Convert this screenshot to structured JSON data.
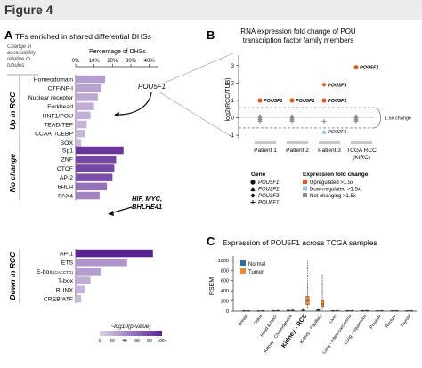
{
  "figure": {
    "title": "Figure 4"
  },
  "panelA": {
    "letter": "A",
    "title": "TFs enriched in shared differential DHSs",
    "side_note": [
      "Change in",
      "accessibility",
      "relative to",
      "tubules"
    ],
    "axis_title": "Percentage of DHSs",
    "ticks": [
      "0%",
      "10%",
      "20%",
      "30%",
      "40%"
    ],
    "xlim": [
      0,
      45
    ],
    "groups": [
      {
        "label": "Up in RCC",
        "rows": [
          {
            "name": "Homeodomain",
            "value": 16,
            "level": 0.3
          },
          {
            "name": "CTF/NF-I",
            "value": 14,
            "level": 0.28
          },
          {
            "name": "Nuclear receptor",
            "value": 12,
            "level": 0.25
          },
          {
            "name": "Forkhead",
            "value": 10,
            "level": 0.22
          },
          {
            "name": "HNF1/POU",
            "value": 8,
            "level": 0.2
          },
          {
            "name": "TEAD/TEF",
            "value": 6,
            "level": 0.18
          },
          {
            "name": "CCAAT/CEBP",
            "value": 5,
            "level": 0.16
          },
          {
            "name": "SOX",
            "value": 3,
            "level": 0.14
          }
        ]
      },
      {
        "label": "No change",
        "rows": [
          {
            "name": "Sp1",
            "value": 26,
            "level": 0.9
          },
          {
            "name": "ZNF",
            "value": 22,
            "level": 0.8
          },
          {
            "name": "CTCF",
            "value": 21,
            "level": 0.8
          },
          {
            "name": "AP-2",
            "value": 20,
            "level": 0.75
          },
          {
            "name": "bHLH",
            "value": 17,
            "level": 0.55
          },
          {
            "name": "PAX4",
            "value": 13,
            "level": 0.45
          }
        ]
      },
      {
        "label": "Down in RCC",
        "rows": [
          {
            "name": "AP-1",
            "value": 42,
            "level": 1.0
          },
          {
            "name": "ETS",
            "value": 28,
            "level": 0.35
          },
          {
            "name": "E-box",
            "sub": "(CACCTG)",
            "value": 14,
            "level": 0.3
          },
          {
            "name": "T-box",
            "value": 8,
            "level": 0.22
          },
          {
            "name": "RUNX",
            "value": 5,
            "level": 0.18
          },
          {
            "name": "CREB/ATF",
            "value": 3,
            "level": 0.15
          }
        ]
      }
    ],
    "callout_pou": "POU5F1",
    "callout_hif": [
      "HIF, MYC,",
      "BHLHE41"
    ],
    "colorbar": {
      "label": "~log10(p-value)",
      "ticks": [
        "0",
        "20",
        "40",
        "60",
        "80",
        "100+"
      ]
    },
    "colors": {
      "low": "#dcd3e8",
      "high": "#5b2392"
    }
  },
  "panelB": {
    "letter": "B",
    "title": [
      "RNA expression fold change of POU",
      "transcription factor family members"
    ],
    "ylabel": "log2(RCC/TUB)",
    "yticks": [
      "3",
      "2",
      "1",
      "0",
      "-1"
    ],
    "ylim": [
      -1.2,
      3.6
    ],
    "columns": [
      "Patient 1",
      "Patient 2",
      "Patient 3",
      "TCGA RCC"
    ],
    "column_sub": [
      "",
      "",
      "",
      "(KIRC)"
    ],
    "threshold_label": "1.5x change",
    "points": [
      {
        "col": 0,
        "gene": "POU5F1",
        "y": 1.0,
        "status": "up",
        "shape": "circle",
        "label": "POU5F1"
      },
      {
        "col": 0,
        "gene": "POU2F1",
        "y": 0.1,
        "status": "nc",
        "shape": "triangle"
      },
      {
        "col": 0,
        "gene": "POU3F3",
        "y": -0.1,
        "status": "nc",
        "shape": "diamond"
      },
      {
        "col": 0,
        "gene": "POU6F1",
        "y": -0.2,
        "status": "nc",
        "shape": "plus"
      },
      {
        "col": 1,
        "gene": "POU5F1",
        "y": 1.0,
        "status": "up",
        "shape": "circle",
        "label": "POU5F1"
      },
      {
        "col": 1,
        "gene": "POU2F1",
        "y": 0.1,
        "status": "nc",
        "shape": "triangle"
      },
      {
        "col": 1,
        "gene": "POU3F3",
        "y": -0.1,
        "status": "nc",
        "shape": "diamond"
      },
      {
        "col": 1,
        "gene": "POU6F1",
        "y": -0.2,
        "status": "nc",
        "shape": "plus"
      },
      {
        "col": 2,
        "gene": "POU5F1",
        "y": 1.0,
        "status": "up",
        "shape": "circle",
        "label": "POU5F1"
      },
      {
        "col": 2,
        "gene": "POU3F3",
        "y": 1.9,
        "status": "up",
        "shape": "diamond",
        "label": "POU3F3"
      },
      {
        "col": 2,
        "gene": "POU2F1",
        "y": -0.8,
        "status": "down",
        "shape": "triangle",
        "label": "POU2F1"
      },
      {
        "col": 2,
        "gene": "POU6F1",
        "y": -0.2,
        "status": "nc",
        "shape": "plus"
      },
      {
        "col": 3,
        "gene": "POU5F1",
        "y": 2.9,
        "status": "up",
        "shape": "circle",
        "label": "POU5F1"
      },
      {
        "col": 3,
        "gene": "POU2F1",
        "y": 0.1,
        "status": "nc",
        "shape": "triangle"
      },
      {
        "col": 3,
        "gene": "POU3F3",
        "y": -0.1,
        "status": "nc",
        "shape": "diamond"
      },
      {
        "col": 3,
        "gene": "POU6F1",
        "y": -0.2,
        "status": "nc",
        "shape": "plus"
      }
    ],
    "legend": {
      "gene_title": "Gene",
      "genes": [
        "POU5F1",
        "POU2F1",
        "POU3F3",
        "POU6F1"
      ],
      "fc_title": "Expression fold change",
      "fc": [
        "Upregulated >1.5x",
        "Downregulated >1.5x",
        "Not changing >1.5x"
      ]
    },
    "colors": {
      "up": "#e05a1f",
      "down": "#8ec6e8",
      "nc": "#8a8a8a"
    }
  },
  "panelC": {
    "letter": "C",
    "title": "Expression of POU5F1 across TCGA samples",
    "ylabel": "RSEM",
    "yticks": [
      "1000",
      "800",
      "600",
      "400",
      "200",
      "0"
    ],
    "ylim": [
      0,
      1050
    ],
    "legend": [
      "Normal",
      "Tumor"
    ],
    "colors": {
      "normal": "#2b6fa0",
      "tumor": "#f08a2b"
    },
    "tissues": [
      {
        "name": "Breast",
        "normal": [
          0,
          2,
          5,
          10,
          20
        ],
        "tumor": [
          0,
          3,
          6,
          12,
          25
        ]
      },
      {
        "name": "Colon",
        "normal": [
          0,
          2,
          4,
          8,
          18
        ],
        "tumor": [
          0,
          3,
          6,
          12,
          24
        ]
      },
      {
        "name": "Head & Neck",
        "normal": [
          0,
          3,
          6,
          12,
          26
        ],
        "tumor": [
          0,
          4,
          8,
          16,
          32
        ]
      },
      {
        "name": "Kidney - Chromophobe",
        "normal": [
          0,
          5,
          10,
          20,
          40
        ],
        "tumor": [
          0,
          6,
          12,
          22,
          45
        ]
      },
      {
        "name": "Kidney - RCC",
        "normal": [
          0,
          8,
          15,
          28,
          60
        ],
        "tumor": [
          40,
          130,
          200,
          290,
          480
        ],
        "bold": true
      },
      {
        "name": "Kidney - Papillary",
        "normal": [
          0,
          10,
          18,
          30,
          60
        ],
        "tumor": [
          30,
          90,
          140,
          210,
          360
        ]
      },
      {
        "name": "Liver",
        "normal": [
          0,
          3,
          6,
          12,
          24
        ],
        "tumor": [
          0,
          4,
          8,
          16,
          34
        ]
      },
      {
        "name": "Lung - Adenocarcinoma",
        "normal": [
          0,
          3,
          6,
          12,
          24
        ],
        "tumor": [
          0,
          4,
          8,
          14,
          30
        ]
      },
      {
        "name": "Lung - Squamous",
        "normal": [
          0,
          3,
          6,
          12,
          24
        ],
        "tumor": [
          0,
          4,
          8,
          14,
          30
        ]
      },
      {
        "name": "Prostate",
        "normal": [
          0,
          2,
          5,
          10,
          20
        ],
        "tumor": [
          0,
          3,
          6,
          12,
          24
        ]
      },
      {
        "name": "Rectum",
        "normal": [
          0,
          2,
          5,
          10,
          20
        ],
        "tumor": [
          0,
          3,
          6,
          12,
          24
        ]
      },
      {
        "name": "Thyroid",
        "normal": [
          0,
          2,
          5,
          10,
          20
        ],
        "tumor": [
          0,
          3,
          6,
          12,
          24
        ]
      }
    ]
  }
}
